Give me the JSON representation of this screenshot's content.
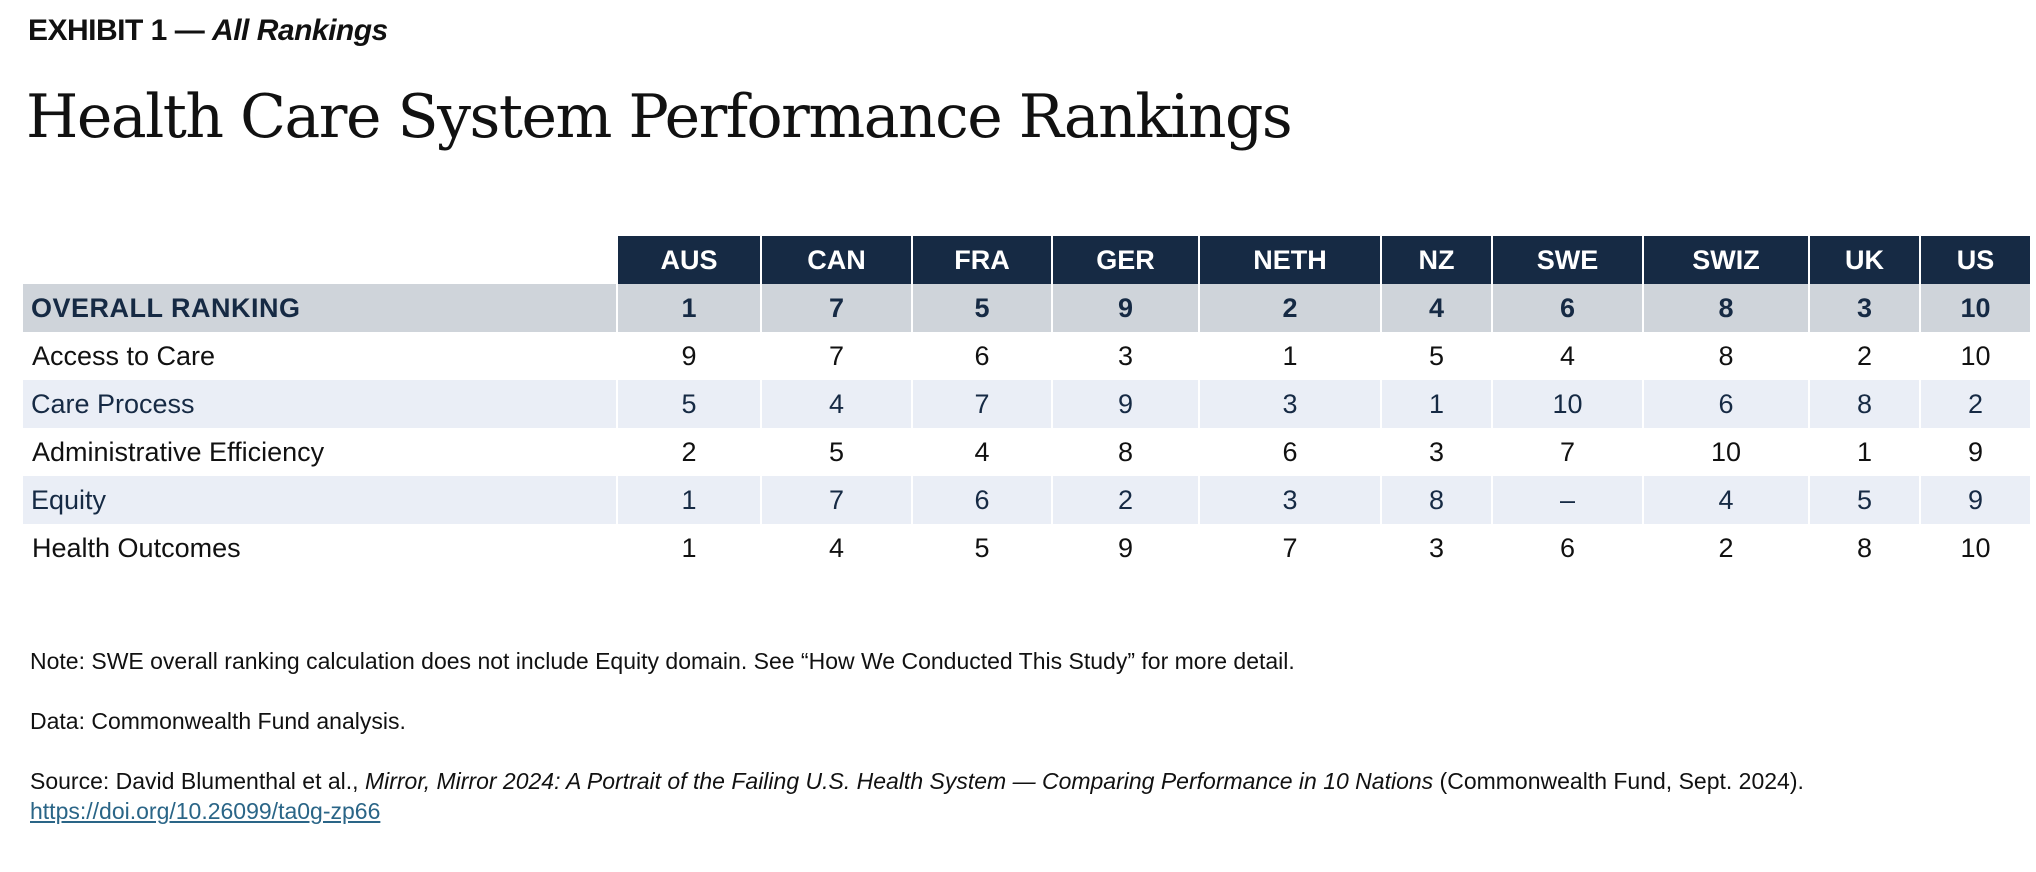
{
  "exhibit": {
    "label": "EXHIBIT 1 —",
    "subtitle": "All Rankings"
  },
  "title": "Health Care System Performance Rankings",
  "chart_data": {
    "type": "table",
    "title": "Health Care System Performance Rankings",
    "columns": [
      "AUS",
      "CAN",
      "FRA",
      "GER",
      "NETH",
      "NZ",
      "SWE",
      "SWIZ",
      "UK",
      "US"
    ],
    "rows": [
      {
        "label": "OVERALL RANKING",
        "values": [
          "1",
          "7",
          "5",
          "9",
          "2",
          "4",
          "6",
          "8",
          "3",
          "10"
        ]
      },
      {
        "label": "Access to Care",
        "values": [
          "9",
          "7",
          "6",
          "3",
          "1",
          "5",
          "4",
          "8",
          "2",
          "10"
        ]
      },
      {
        "label": "Care Process",
        "values": [
          "5",
          "4",
          "7",
          "9",
          "3",
          "1",
          "10",
          "6",
          "8",
          "2"
        ]
      },
      {
        "label": "Administrative Efficiency",
        "values": [
          "2",
          "5",
          "4",
          "8",
          "6",
          "3",
          "7",
          "10",
          "1",
          "9"
        ]
      },
      {
        "label": "Equity",
        "values": [
          "1",
          "7",
          "6",
          "2",
          "3",
          "8",
          "–",
          "4",
          "5",
          "9"
        ]
      },
      {
        "label": "Health Outcomes",
        "values": [
          "1",
          "4",
          "5",
          "9",
          "7",
          "3",
          "6",
          "2",
          "8",
          "10"
        ]
      }
    ]
  },
  "notes": {
    "note": "Note: SWE overall ranking calculation does not include Equity domain. See “How We Conducted This Study” for more detail.",
    "data": "Data: Commonwealth Fund analysis.",
    "source_prefix": "Source: David Blumenthal et al., ",
    "source_title": "Mirror, Mirror 2024: A Portrait of the Failing U.S. Health System — Comparing Performance in 10 Nations",
    "source_suffix": " (Commonwealth Fund, Sept. 2024).",
    "link": "https://doi.org/10.26099/ta0g-zp66"
  },
  "colors": {
    "header_bg": "#162a44",
    "overall_bg": "#cfd4da",
    "shaded_bg": "#eaeef6",
    "link": "#2a6587"
  }
}
